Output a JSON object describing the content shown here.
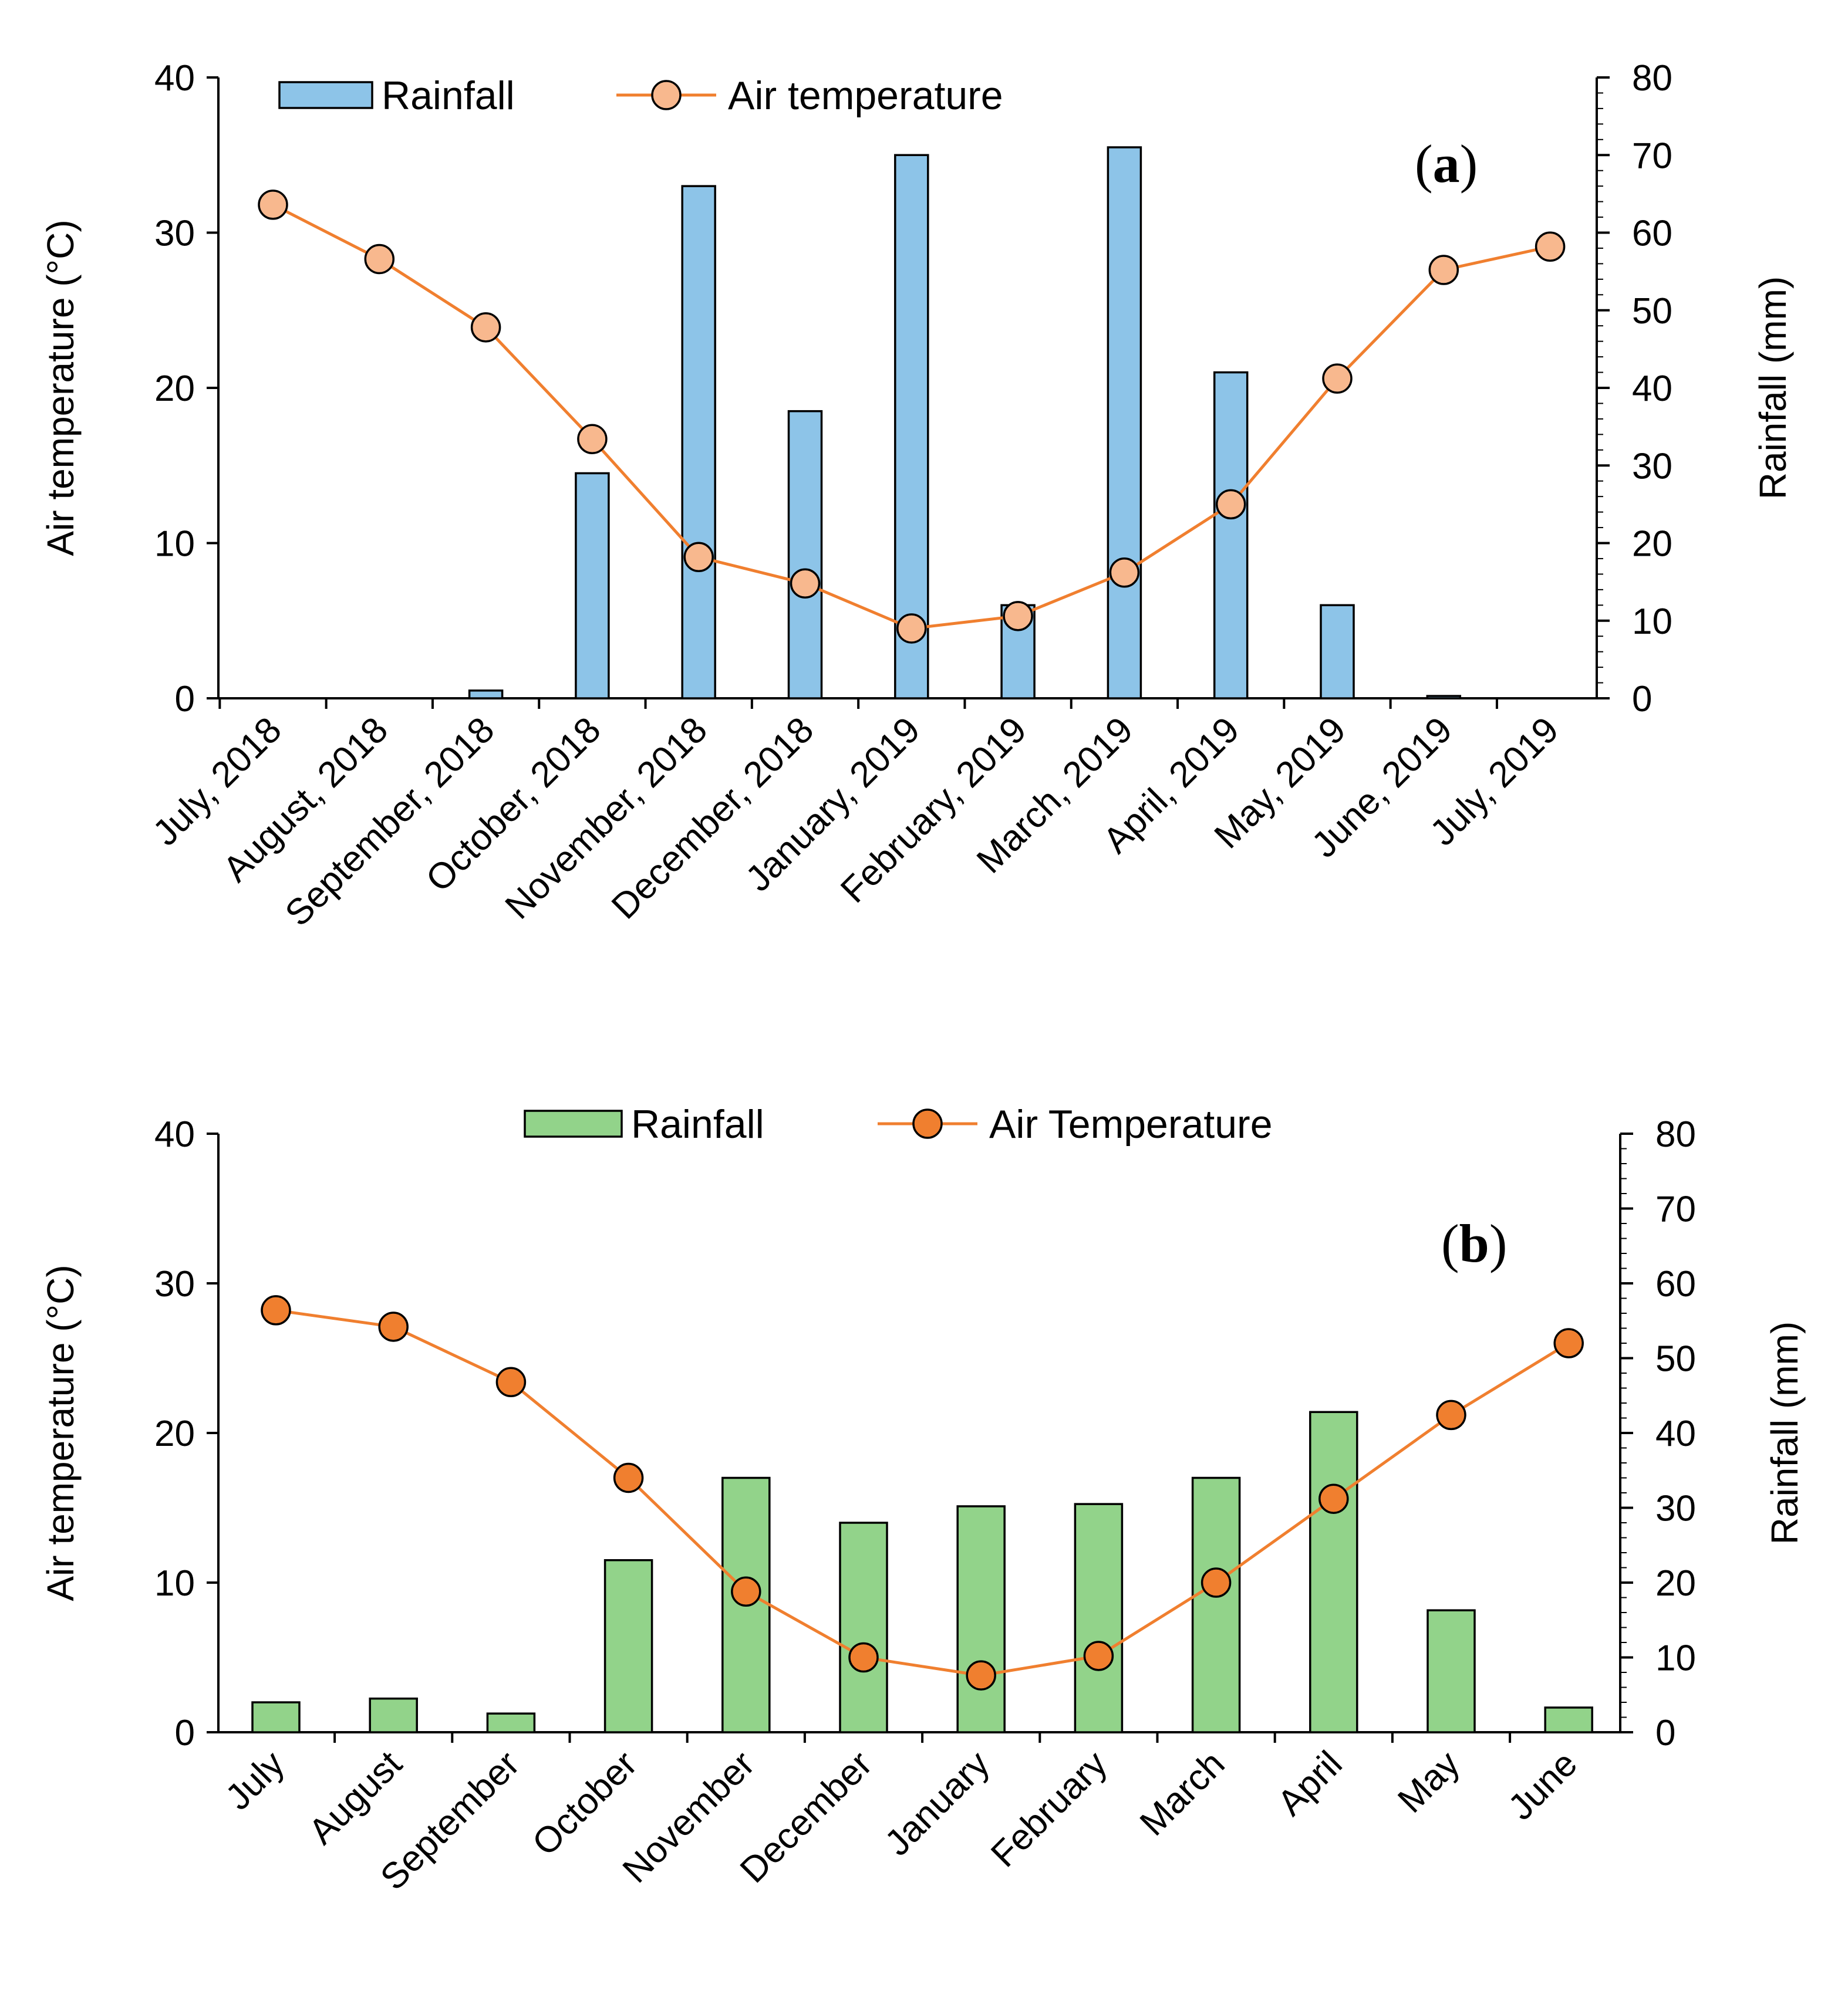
{
  "chart_data": [
    {
      "type": "bar+line",
      "panel_label": "(a)",
      "panel_letter": "a",
      "categories": [
        "July, 2018",
        "August, 2018",
        "September, 2018",
        "October, 2018",
        "November, 2018",
        "December, 2018",
        "January, 2019",
        "February, 2019",
        "March, 2019",
        "April, 2019",
        "May, 2019",
        "June, 2019",
        "July, 2019"
      ],
      "series": [
        {
          "name": "Rainfall",
          "kind": "bar",
          "axis": "right",
          "color": "#8DC4E8",
          "values": [
            0,
            0,
            1,
            29,
            66,
            37,
            70,
            12,
            71,
            42,
            12,
            0.3,
            0
          ]
        },
        {
          "name": "Air temperature",
          "kind": "line",
          "axis": "left",
          "color": "#F07F2F",
          "marker_fill": "#F8B88E",
          "values": [
            31.8,
            28.3,
            23.9,
            16.7,
            9.1,
            7.4,
            4.5,
            5.3,
            8.1,
            12.5,
            20.6,
            27.6,
            29.1
          ]
        }
      ],
      "legend": [
        "Rainfall",
        "Air temperature"
      ],
      "legend_position": "top",
      "ylabel_left": "Air temperature (°C)",
      "ylabel_right": "Rainfall (mm)",
      "ylim_left": [
        0,
        40
      ],
      "ylim_right": [
        0,
        80
      ],
      "yticks_left": [
        "0",
        "10",
        "20",
        "30",
        "40"
      ],
      "yticks_right": [
        "0",
        "10",
        "20",
        "30",
        "40",
        "50",
        "60",
        "70",
        "80"
      ],
      "grid": false
    },
    {
      "type": "bar+line",
      "panel_label": "(b)",
      "panel_letter": "b",
      "categories": [
        "July",
        "August",
        "September",
        "October",
        "November",
        "December",
        "January",
        "February",
        "March",
        "April",
        "May",
        "June"
      ],
      "series": [
        {
          "name": "Rainfall",
          "kind": "bar",
          "axis": "right",
          "color": "#92D38A",
          "values": [
            4,
            4.5,
            2.5,
            23,
            34,
            28,
            30.2,
            30.5,
            34,
            42.8,
            16.3,
            3.3
          ]
        },
        {
          "name": "Air Temperature",
          "kind": "line",
          "axis": "left",
          "color": "#F07F2F",
          "marker_fill": "#F07F2F",
          "values": [
            28.2,
            27.1,
            23.4,
            17.0,
            9.4,
            5.0,
            3.8,
            5.1,
            10.0,
            15.6,
            21.2,
            26.0
          ]
        }
      ],
      "legend": [
        "Rainfall",
        "Air Temperature"
      ],
      "legend_position": "top",
      "ylabel_left": "Air temperature (°C)",
      "ylabel_right": "Rainfall (mm)",
      "ylim_left": [
        0,
        40
      ],
      "ylim_right": [
        0,
        80
      ],
      "yticks_left": [
        "0",
        "10",
        "20",
        "30",
        "40"
      ],
      "yticks_right": [
        "0",
        "10",
        "20",
        "30",
        "40",
        "50",
        "60",
        "70",
        "80"
      ],
      "grid": false
    }
  ]
}
